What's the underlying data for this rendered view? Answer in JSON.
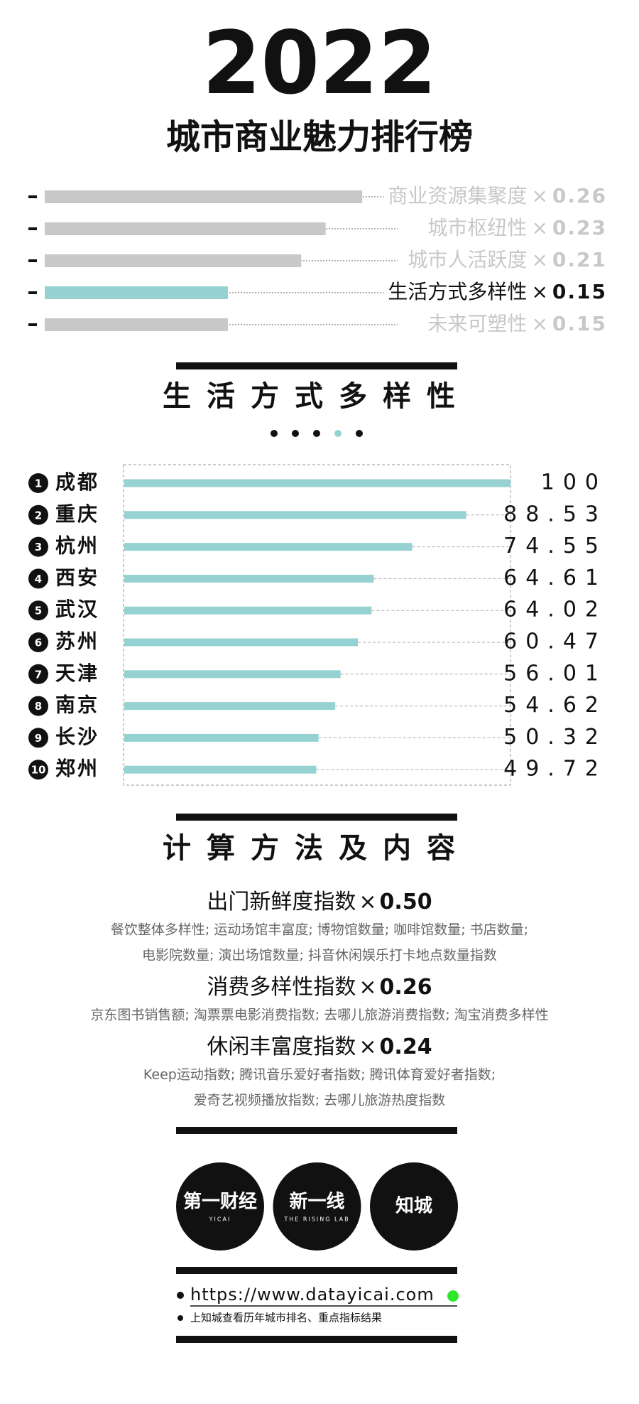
{
  "header": {
    "year": "2022",
    "title": "城市商业魅力排行榜"
  },
  "chart_data": [
    {
      "type": "weights",
      "categories": [
        "商业资源集聚度",
        "城市枢纽性",
        "城市人活跃度",
        "生活方式多样性",
        "未来可塑性"
      ],
      "values": [
        0.26,
        0.23,
        0.21,
        0.15,
        0.15
      ],
      "multiplier": "×",
      "colors": [
        "#c8c8c8",
        "#c8c8c8",
        "#c8c8c8",
        "#96d2d2",
        "#c8c8c8"
      ],
      "label_colors": [
        "#c8c8c8",
        "#c8c8c8",
        "#c8c8c8",
        "#111111",
        "#c8c8c8"
      ],
      "xlim": [
        0,
        0.3
      ]
    },
    {
      "type": "hbar",
      "title": "生活方式多样性",
      "ranks": [
        1,
        2,
        3,
        4,
        5,
        6,
        7,
        8,
        9,
        10
      ],
      "categories": [
        "成都",
        "重庆",
        "杭州",
        "西安",
        "武汉",
        "苏州",
        "天津",
        "南京",
        "长沙",
        "郑州"
      ],
      "values": [
        100,
        88.53,
        74.55,
        64.61,
        64.02,
        60.47,
        56.01,
        54.62,
        50.32,
        49.72
      ],
      "color": "#96d2d2",
      "xlim": [
        0,
        100
      ]
    }
  ],
  "method": {
    "title": "计算方法及内容",
    "items": [
      {
        "name": "出门新鲜度指数",
        "weight": "0.50",
        "lines": [
          "餐饮整体多样性; 运动场馆丰富度; 博物馆数量; 咖啡馆数量; 书店数量;",
          "电影院数量; 演出场馆数量; 抖音休闲娱乐打卡地点数量指数"
        ]
      },
      {
        "name": "消费多样性指数",
        "weight": "0.26",
        "lines": [
          "京东图书销售额; 淘票票电影消费指数; 去哪儿旅游消费指数; 淘宝消费多样性"
        ]
      },
      {
        "name": "休闲丰富度指数",
        "weight": "0.24",
        "lines": [
          "Keep运动指数; 腾讯音乐爱好者指数; 腾讯体育爱好者指数;",
          "爱奇艺视频播放指数; 去哪儿旅游热度指数"
        ]
      }
    ]
  },
  "logos": [
    {
      "name": "第一财经",
      "sub": "YICAI"
    },
    {
      "name": "新一线",
      "sub": "THE RISING LAB"
    },
    {
      "name": "知城"
    }
  ],
  "footer": {
    "url": "https://www.datayicai.com",
    "note": "上知城查看历年城市排名、重点指标结果"
  }
}
